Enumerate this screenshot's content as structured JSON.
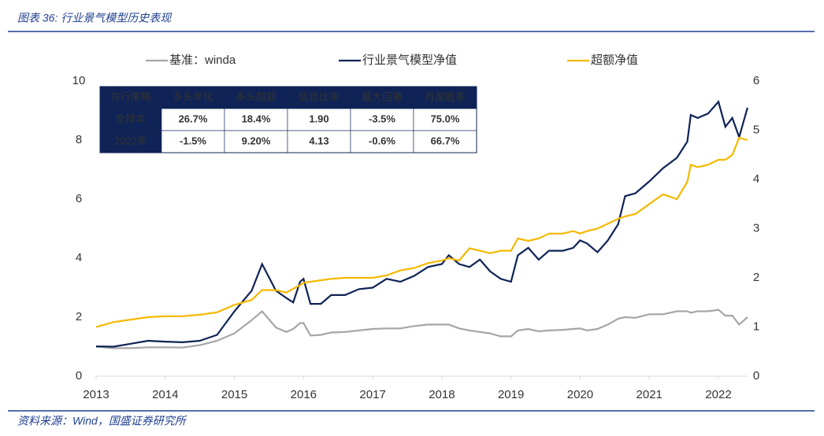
{
  "chart_data": {
    "type": "line",
    "title": "图表 36: 行业景气模型历史表现",
    "source": "资料来源：Wind，国盛证券研究所",
    "x": [
      2013.0,
      2013.25,
      2013.5,
      2013.75,
      2014.0,
      2014.25,
      2014.5,
      2014.75,
      2015.0,
      2015.25,
      2015.4,
      2015.6,
      2015.75,
      2015.85,
      2015.95,
      2016.0,
      2016.1,
      2016.25,
      2016.4,
      2016.6,
      2016.8,
      2017.0,
      2017.2,
      2017.4,
      2017.6,
      2017.8,
      2018.0,
      2018.1,
      2018.25,
      2018.4,
      2018.55,
      2018.7,
      2018.85,
      2019.0,
      2019.1,
      2019.25,
      2019.4,
      2019.55,
      2019.75,
      2019.9,
      2020.0,
      2020.1,
      2020.25,
      2020.4,
      2020.55,
      2020.65,
      2020.8,
      2021.0,
      2021.2,
      2021.4,
      2021.55,
      2021.6,
      2021.7,
      2021.85,
      2022.0,
      2022.1,
      2022.2,
      2022.3,
      2022.42
    ],
    "series": [
      {
        "name": "基准：winda",
        "color": "#a6a6a6",
        "axis": "y",
        "values": [
          1.0,
          0.95,
          0.95,
          0.98,
          0.98,
          0.97,
          1.05,
          1.2,
          1.45,
          1.9,
          2.2,
          1.65,
          1.5,
          1.6,
          1.8,
          1.8,
          1.38,
          1.4,
          1.48,
          1.5,
          1.55,
          1.6,
          1.62,
          1.62,
          1.7,
          1.75,
          1.75,
          1.75,
          1.62,
          1.55,
          1.5,
          1.45,
          1.35,
          1.35,
          1.55,
          1.6,
          1.52,
          1.55,
          1.57,
          1.6,
          1.62,
          1.55,
          1.6,
          1.75,
          1.95,
          2.0,
          1.98,
          2.1,
          2.1,
          2.2,
          2.2,
          2.15,
          2.2,
          2.2,
          2.25,
          2.05,
          2.05,
          1.75,
          2.0
        ]
      },
      {
        "name": "行业景气模型净值",
        "color": "#0f2356",
        "axis": "y",
        "values": [
          1.01,
          1.0,
          1.1,
          1.2,
          1.17,
          1.15,
          1.2,
          1.4,
          2.2,
          2.9,
          3.8,
          2.9,
          2.65,
          2.5,
          3.2,
          3.3,
          2.45,
          2.45,
          2.75,
          2.75,
          2.95,
          3.0,
          3.3,
          3.2,
          3.4,
          3.7,
          3.8,
          4.1,
          3.8,
          3.7,
          3.95,
          3.55,
          3.3,
          3.2,
          4.1,
          4.35,
          3.95,
          4.25,
          4.25,
          4.35,
          4.6,
          4.5,
          4.2,
          4.6,
          5.15,
          6.1,
          6.2,
          6.6,
          7.05,
          7.4,
          7.95,
          8.85,
          8.75,
          8.9,
          9.3,
          8.45,
          8.75,
          8.1,
          9.1
        ]
      },
      {
        "name": "超额净值",
        "color": "#f5b800",
        "axis": "y2",
        "values": [
          1.0,
          1.1,
          1.15,
          1.2,
          1.22,
          1.22,
          1.25,
          1.3,
          1.45,
          1.55,
          1.75,
          1.75,
          1.7,
          1.78,
          1.85,
          1.9,
          1.92,
          1.95,
          1.98,
          2.0,
          2.0,
          2.0,
          2.05,
          2.15,
          2.2,
          2.3,
          2.35,
          2.4,
          2.35,
          2.6,
          2.55,
          2.5,
          2.55,
          2.55,
          2.8,
          2.75,
          2.8,
          2.9,
          2.9,
          2.95,
          2.9,
          2.95,
          3.0,
          3.1,
          3.2,
          3.25,
          3.3,
          3.5,
          3.7,
          3.6,
          3.95,
          4.3,
          4.25,
          4.3,
          4.4,
          4.4,
          4.5,
          4.85,
          4.8
        ]
      }
    ],
    "xlim": [
      2013,
      2022.42
    ],
    "xticks": [
      2013,
      2014,
      2015,
      2016,
      2017,
      2018,
      2019,
      2020,
      2021,
      2022
    ],
    "ylim": [
      0,
      10
    ],
    "yticks": [
      0,
      2,
      4,
      6,
      8,
      10
    ],
    "y2lim": [
      0,
      6
    ],
    "y2ticks": [
      0,
      1,
      2,
      3,
      4,
      5,
      6
    ],
    "legend": "top",
    "table": {
      "columns": [
        "并行策略",
        "多头年化",
        "多头超额",
        "信息比率",
        "最大回撤",
        "月度胜率"
      ],
      "rows": [
        [
          "全样本",
          "26.7%",
          "18.4%",
          "1.90",
          "-3.5%",
          "75.0%"
        ],
        [
          "2022年",
          "-1.5%",
          "9.20%",
          "4.13",
          "-0.6%",
          "66.7%"
        ]
      ]
    }
  }
}
